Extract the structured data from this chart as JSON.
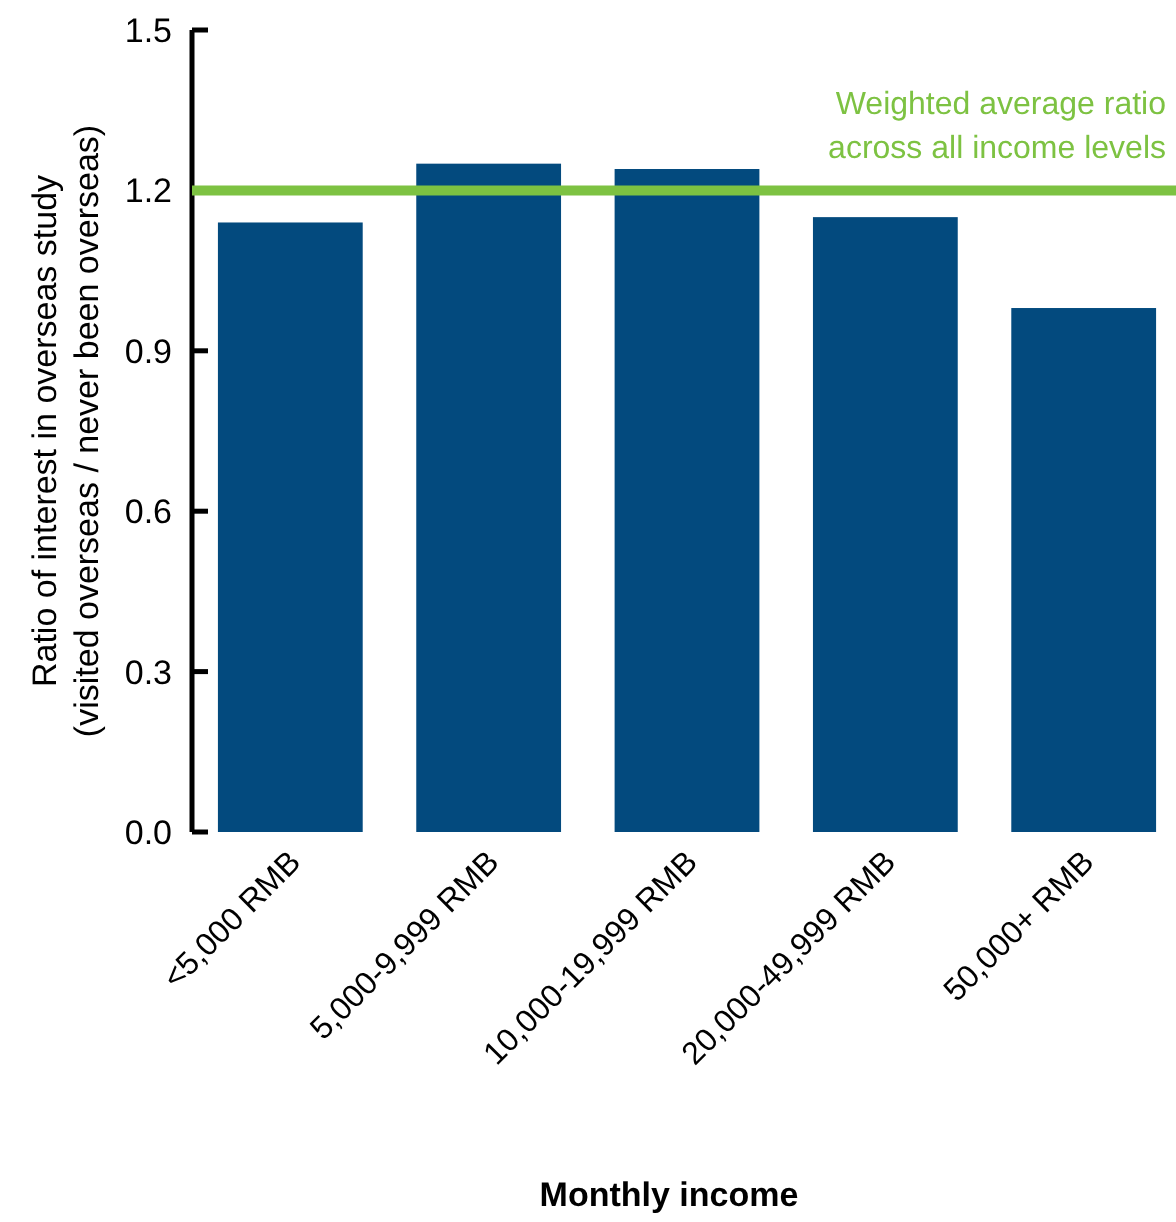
{
  "chart_data": {
    "type": "bar",
    "xlabel": "Monthly income",
    "ylabel": "Ratio of interest in overseas study\n(visited overseas / never been overseas)",
    "categories": [
      "<5,000 RMB",
      "5,000-9,999 RMB",
      "10,000-19,999 RMB",
      "20,000-49,999 RMB",
      "50,000+ RMB"
    ],
    "values": [
      1.14,
      1.25,
      1.24,
      1.15,
      0.98
    ],
    "color": "#034a7e",
    "ylim": [
      0,
      1.5
    ],
    "yticks": [
      {
        "value": 0,
        "label": "0.0"
      },
      {
        "value": 0.3,
        "label": "0.3"
      },
      {
        "value": 0.6,
        "label": "0.6"
      },
      {
        "value": 0.9,
        "label": "0.9"
      },
      {
        "value": 1.2,
        "label": "1.2"
      },
      {
        "value": 1.5,
        "label": "1.5"
      }
    ],
    "ref_lines": [
      {
        "axis": "y",
        "value": 1.2,
        "label": "Weighted average ratio across all income levels",
        "color": "#7dc242"
      }
    ],
    "grid": false
  }
}
